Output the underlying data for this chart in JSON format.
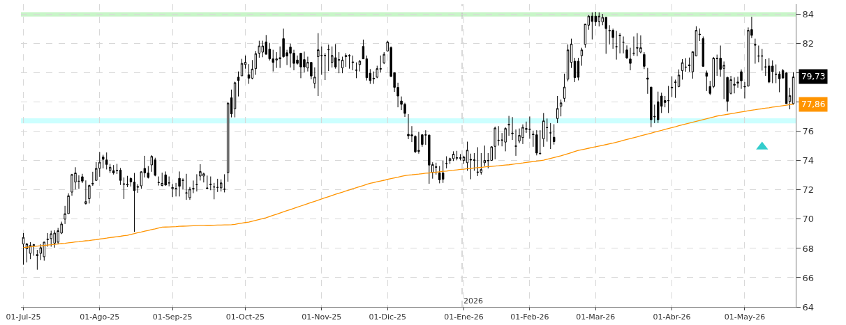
{
  "chart_data": {
    "type": "candlestick",
    "color": "#000000",
    "categories": [
      "01-Jul-25",
      null,
      null,
      null,
      null,
      null,
      null,
      null,
      null,
      null,
      null,
      null,
      null,
      null,
      null,
      null,
      null,
      null,
      null,
      null,
      null,
      null,
      "01-Ago-25",
      null,
      null,
      null,
      null,
      null,
      null,
      null,
      null,
      null,
      null,
      null,
      null,
      null,
      null,
      null,
      null,
      null,
      null,
      null,
      null,
      "01-Sep-25",
      null,
      null,
      null,
      null,
      null,
      null,
      null,
      null,
      null,
      null,
      null,
      null,
      null,
      null,
      null,
      null,
      null,
      null,
      null,
      null,
      "01-Oct-25",
      null,
      null,
      null,
      null,
      null,
      null,
      null,
      null,
      null,
      null,
      null,
      null,
      null,
      null,
      null,
      null,
      null,
      null,
      null,
      null,
      null,
      "01-Nov-25",
      null,
      null,
      null,
      null,
      null,
      null,
      null,
      null,
      null,
      null,
      null,
      null,
      null,
      null,
      null,
      null,
      null,
      null,
      "01-Dic-25",
      null,
      null,
      null,
      null,
      null,
      null,
      null,
      null,
      null,
      null,
      null,
      null,
      null,
      null,
      null,
      null,
      null,
      null,
      null,
      null,
      null,
      "01-Ene-26",
      null,
      null,
      null,
      null,
      null,
      null,
      null,
      null,
      null,
      null,
      null,
      null,
      null,
      null,
      null,
      null,
      null,
      null,
      "01-Feb-26",
      null,
      null,
      null,
      null,
      null,
      null,
      null,
      null,
      null,
      null,
      null,
      null,
      null,
      null,
      null,
      null,
      null,
      null,
      "01-Mar-26",
      null,
      null,
      null,
      null,
      null,
      null,
      null,
      null,
      null,
      null,
      null,
      null,
      null,
      null,
      null,
      null,
      null,
      null,
      null,
      null,
      null,
      "01-Abr-26",
      null,
      null,
      null,
      null,
      null,
      null,
      null,
      null,
      null,
      null,
      null,
      null,
      null,
      null,
      null,
      null,
      null,
      null,
      null,
      null,
      "01-May-26",
      null,
      null,
      null,
      null,
      null,
      null,
      null,
      null,
      null,
      null,
      null,
      null,
      null,
      null
    ],
    "ohlc": [
      [
        68.3,
        69.05,
        66.88,
        68.75
      ],
      [
        67.97,
        68.36,
        67.04,
        68.31
      ],
      [
        67.66,
        68.43,
        67.27,
        68.2
      ],
      [
        68.2,
        68.3,
        67.5,
        68.25
      ],
      [
        67.5,
        67.9,
        66.54,
        67.58
      ],
      [
        67.66,
        68.28,
        67.2,
        68.05
      ],
      [
        67.43,
        68.46,
        67.16,
        68.43
      ],
      [
        68.6,
        69.05,
        68.12,
        68.64
      ],
      [
        68.67,
        69.21,
        68.12,
        69.0
      ],
      [
        68.36,
        69.24,
        68.05,
        69.05
      ],
      [
        68.43,
        69.4,
        68.3,
        69.21
      ],
      [
        69.05,
        69.83,
        68.98,
        69.67
      ],
      [
        70.0,
        70.91,
        69.67,
        70.37
      ],
      [
        70.38,
        71.77,
        70.37,
        71.6
      ],
      [
        71.85,
        73.1,
        71.6,
        73.05
      ],
      [
        72.54,
        73.55,
        72.03,
        73.16
      ],
      [
        72.6,
        73.0,
        72.07,
        72.59
      ],
      [
        72.9,
        73.1,
        72.47,
        72.6
      ],
      [
        71.07,
        72.65,
        70.99,
        71.2
      ],
      [
        71.4,
        72.36,
        71.07,
        72.3
      ],
      [
        72.4,
        73.24,
        72.28,
        72.45
      ],
      [
        72.65,
        73.9,
        72.65,
        73.47
      ],
      [
        73.47,
        74.6,
        72.9,
        73.89
      ],
      [
        74.25,
        74.4,
        73.47,
        74.09
      ],
      [
        74.05,
        74.56,
        73.4,
        73.74
      ],
      [
        73.32,
        73.78,
        73.16,
        73.55
      ],
      [
        73.32,
        73.7,
        73.05,
        73.16
      ],
      [
        73.32,
        73.78,
        73.09,
        73.32
      ],
      [
        73.35,
        73.5,
        72.34,
        72.65
      ],
      [
        72.42,
        72.85,
        71.38,
        72.39
      ],
      [
        72.34,
        72.96,
        72.19,
        72.39
      ],
      [
        72.78,
        72.85,
        72.23,
        72.55
      ],
      [
        72.54,
        73.16,
        69.13,
        71.95
      ],
      [
        72.23,
        72.39,
        71.8,
        72.19
      ],
      [
        72.28,
        73.27,
        72.08,
        73.24
      ],
      [
        73.47,
        74.33,
        72.85,
        73.16
      ],
      [
        73.16,
        73.63,
        72.78,
        72.85
      ],
      [
        73.71,
        74.37,
        73.24,
        74.29
      ],
      [
        74.05,
        74.2,
        72.93,
        73.0
      ],
      [
        72.51,
        72.92,
        72.3,
        72.5
      ],
      [
        72.3,
        73.18,
        72.25,
        72.45
      ],
      [
        73.03,
        73.26,
        72.3,
        72.33
      ],
      [
        72.48,
        72.92,
        72.25,
        72.48
      ],
      [
        72.09,
        72.4,
        71.52,
        72.17
      ],
      [
        72.09,
        72.48,
        71.55,
        72.1
      ],
      [
        72.79,
        73.26,
        71.55,
        72.25
      ],
      [
        72.67,
        72.79,
        72.02,
        72.65
      ],
      [
        71.78,
        73.1,
        71.32,
        71.8
      ],
      [
        71.47,
        72.2,
        71.32,
        72.05
      ],
      [
        72.05,
        72.64,
        71.78,
        72.1
      ],
      [
        72.36,
        73.07,
        71.89,
        72.36
      ],
      [
        72.95,
        73.76,
        72.64,
        73.26
      ],
      [
        72.95,
        73.18,
        72.51,
        73.1
      ],
      [
        72.14,
        72.98,
        72.05,
        72.1
      ],
      [
        72.4,
        72.92,
        71.98,
        72.36
      ],
      [
        72.2,
        72.48,
        71.36,
        72.2
      ],
      [
        72.17,
        72.76,
        71.86,
        72.17
      ],
      [
        72.14,
        72.72,
        71.89,
        72.48
      ],
      [
        72.05,
        73.07,
        71.83,
        72.05
      ],
      [
        73.18,
        78.0,
        72.56,
        77.93
      ],
      [
        78.3,
        78.86,
        76.96,
        77.2
      ],
      [
        77.54,
        79.4,
        76.96,
        79.33
      ],
      [
        79.71,
        80.1,
        78.39,
        79.48
      ],
      [
        79.8,
        80.96,
        79.8,
        80.65
      ],
      [
        80.57,
        81.19,
        80.29,
        80.72
      ],
      [
        79.87,
        80.6,
        79.25,
        79.64
      ],
      [
        79.64,
        80.88,
        79.56,
        80.26
      ],
      [
        80.29,
        81.5,
        79.87,
        81.32
      ],
      [
        81.35,
        82.2,
        81.04,
        81.84
      ],
      [
        81.42,
        82.2,
        81.07,
        81.84
      ],
      [
        82.12,
        82.59,
        81.27,
        81.27
      ],
      [
        81.63,
        82.05,
        80.85,
        80.96
      ],
      [
        80.96,
        81.58,
        80.1,
        80.72
      ],
      [
        80.88,
        81.42,
        80.34,
        80.96
      ],
      [
        80.96,
        81.81,
        80.34,
        81.04
      ],
      [
        82.34,
        83.03,
        81.04,
        81.11
      ],
      [
        81.38,
        81.58,
        80.54,
        81.16
      ],
      [
        81.77,
        82.0,
        80.37,
        81.35
      ],
      [
        81.35,
        81.58,
        80.18,
        80.65
      ],
      [
        80.88,
        81.19,
        80.57,
        80.65
      ],
      [
        81.35,
        81.35,
        79.64,
        80.41
      ],
      [
        80.91,
        81.46,
        80.02,
        80.41
      ],
      [
        80.34,
        81.11,
        80.1,
        80.72
      ],
      [
        80.72,
        80.72,
        79.56,
        79.79
      ],
      [
        79.29,
        80.38,
        78.94,
        79.71
      ],
      [
        81.11,
        82.72,
        78.42,
        81.58
      ],
      [
        81.19,
        81.81,
        79.87,
        81.19
      ],
      [
        81.2,
        81.35,
        79.51,
        81.19
      ],
      [
        81.6,
        81.94,
        80.13,
        81.58
      ],
      [
        80.72,
        81.81,
        80.37,
        81.19
      ],
      [
        81.04,
        81.97,
        80.29,
        80.41
      ],
      [
        80.88,
        81.42,
        79.98,
        80.9
      ],
      [
        80.34,
        81.11,
        79.98,
        80.88
      ],
      [
        81.11,
        81.35,
        80.41,
        81.19
      ],
      [
        81.19,
        81.27,
        80.29,
        81.16
      ],
      [
        80.75,
        81.19,
        80.18,
        80.72
      ],
      [
        80.2,
        80.72,
        79.64,
        80.18
      ],
      [
        80.57,
        80.88,
        80.1,
        80.8
      ],
      [
        81.81,
        82.28,
        80.96,
        80.96
      ],
      [
        80.96,
        81.19,
        79.48,
        79.67
      ],
      [
        79.98,
        80.26,
        79.25,
        79.48
      ],
      [
        79.64,
        80.1,
        79.25,
        79.6
      ],
      [
        79.71,
        80.49,
        79.64,
        80.29
      ],
      [
        80.26,
        81.19,
        80.02,
        80.29
      ],
      [
        80.69,
        81.42,
        80.6,
        81.27
      ],
      [
        81.5,
        82.2,
        81.47,
        82.12
      ],
      [
        81.74,
        81.81,
        79.71,
        79.76
      ],
      [
        80.02,
        80.02,
        78.7,
        79.01
      ],
      [
        79.01,
        79.33,
        77.65,
        78.42
      ],
      [
        78.08,
        78.39,
        77.46,
        77.85
      ],
      [
        77.85,
        77.96,
        76.99,
        77.23
      ],
      [
        75.8,
        77.18,
        75.47,
        75.7
      ],
      [
        75.77,
        76.36,
        75.27,
        75.7
      ],
      [
        75.66,
        75.73,
        74.52,
        74.61
      ],
      [
        74.7,
        75.97,
        74.48,
        74.64
      ],
      [
        75.77,
        75.81,
        74.95,
        75.11
      ],
      [
        75.77,
        76.08,
        75.08,
        75.75
      ],
      [
        75.75,
        75.77,
        72.42,
        73.7
      ],
      [
        73.2,
        73.89,
        72.77,
        73.73
      ],
      [
        73.58,
        73.86,
        73.05,
        73.55
      ],
      [
        73.16,
        73.63,
        72.45,
        72.69
      ],
      [
        73.16,
        74.02,
        72.48,
        72.73
      ],
      [
        73.78,
        74.3,
        73.47,
        73.8
      ],
      [
        74.02,
        74.2,
        73.78,
        74.14
      ],
      [
        74.14,
        74.64,
        73.98,
        74.45
      ],
      [
        74.17,
        74.67,
        74.02,
        74.2
      ],
      [
        74.2,
        74.45,
        74.02,
        74.17
      ],
      [
        74.02,
        74.33,
        73.78,
        74.25
      ],
      [
        73.86,
        75.3,
        73.31,
        74.72
      ],
      [
        74.09,
        74.48,
        72.73,
        74.05
      ],
      [
        74.02,
        74.52,
        73.31,
        74.05
      ],
      [
        73.2,
        74.92,
        72.95,
        73.22
      ],
      [
        73.2,
        74.52,
        73.05,
        73.39
      ],
      [
        73.86,
        75.03,
        73.63,
        74.02
      ],
      [
        74.02,
        74.52,
        73.47,
        74.0
      ],
      [
        74.02,
        74.98,
        74.02,
        74.95
      ],
      [
        74.98,
        76.33,
        74.09,
        76.23
      ],
      [
        75.38,
        76.36,
        75.03,
        75.4
      ],
      [
        75.42,
        75.89,
        74.98,
        75.4
      ],
      [
        75.27,
        76.28,
        74.64,
        76.2
      ],
      [
        76.44,
        77.06,
        75.7,
        76.48
      ],
      [
        75.89,
        76.98,
        75.42,
        75.85
      ],
      [
        74.98,
        76.13,
        74.33,
        75.0
      ],
      [
        75.34,
        76.2,
        75.19,
        75.73
      ],
      [
        75.58,
        76.48,
        75.14,
        76.28
      ],
      [
        76.13,
        76.67,
        75.89,
        76.2
      ],
      [
        76.13,
        77.02,
        75.5,
        76.16
      ],
      [
        75.81,
        76.05,
        74.95,
        75.78
      ],
      [
        75.77,
        76.08,
        74.36,
        74.52
      ],
      [
        74.48,
        76.08,
        74.41,
        74.5
      ],
      [
        75.5,
        77.26,
        74.95,
        76.72
      ],
      [
        76.26,
        76.88,
        75.3,
        76.26
      ],
      [
        75.9,
        76.57,
        74.8,
        75.9
      ],
      [
        75.6,
        76.49,
        75.1,
        75.3
      ],
      [
        76.88,
        78.42,
        76.57,
        77.57
      ],
      [
        77.72,
        78.18,
        77.03,
        77.95
      ],
      [
        78.26,
        79.95,
        78.03,
        79.03
      ],
      [
        79.57,
        81.95,
        79.42,
        81.57
      ],
      [
        80.72,
        82.34,
        80.34,
        81.98
      ],
      [
        80.8,
        81.03,
        79.37,
        79.68
      ],
      [
        80.8,
        81.03,
        79.49,
        79.7
      ],
      [
        81.18,
        81.72,
        80.49,
        81.57
      ],
      [
        81.95,
        83.37,
        81.72,
        83.34
      ],
      [
        83.26,
        83.95,
        82.95,
        83.88
      ],
      [
        83.88,
        84.14,
        82.29,
        83.52
      ],
      [
        83.88,
        84.18,
        83.22,
        83.49
      ],
      [
        83.52,
        84.14,
        83.18,
        83.88
      ],
      [
        83.49,
        84.03,
        83.26,
        83.8
      ],
      [
        83.8,
        83.83,
        81.31,
        83.03
      ],
      [
        82.91,
        83.26,
        81.95,
        82.88
      ],
      [
        82.91,
        83.03,
        81.65,
        82.42
      ],
      [
        81.8,
        82.88,
        80.91,
        81.78
      ],
      [
        82.57,
        82.72,
        81.34,
        82.55
      ],
      [
        82.11,
        82.49,
        81.34,
        82.1
      ],
      [
        81.57,
        81.88,
        80.95,
        81.03
      ],
      [
        80.95,
        81.72,
        80.18,
        80.65
      ],
      [
        81.34,
        82.49,
        81.18,
        81.35
      ],
      [
        81.72,
        82.72,
        81.15,
        81.7
      ],
      [
        81.42,
        82.57,
        81.34,
        81.72
      ],
      [
        81.26,
        81.42,
        80.26,
        80.45
      ],
      [
        79.65,
        80.34,
        78.57,
        79.57
      ],
      [
        79.03,
        79.03,
        76.29,
        76.8
      ],
      [
        77.03,
        77.83,
        76.57,
        77.0
      ],
      [
        78.03,
        78.72,
        76.57,
        76.8
      ],
      [
        78.42,
        78.65,
        77.26,
        77.72
      ],
      [
        78.11,
        78.42,
        77.65,
        77.98
      ],
      [
        78.11,
        79.11,
        77.26,
        78.1
      ],
      [
        79.02,
        79.77,
        78.37,
        78.99
      ],
      [
        79.38,
        79.54,
        78.29,
        79.35
      ],
      [
        79.07,
        80.24,
        79.02,
        79.85
      ],
      [
        80.16,
        80.94,
        79.54,
        80.7
      ],
      [
        80.39,
        81.01,
        80.08,
        80.4
      ],
      [
        80.55,
        81.05,
        80.08,
        80.5
      ],
      [
        80.08,
        81.48,
        79.61,
        81.45
      ],
      [
        81.17,
        83.19,
        81.14,
        82.91
      ],
      [
        82.65,
        83.04,
        82.18,
        82.62
      ],
      [
        82.34,
        82.49,
        80.42,
        80.45
      ],
      [
        80.0,
        80.16,
        78.76,
        79.77
      ],
      [
        79.07,
        79.46,
        78.49,
        78.6
      ],
      [
        79.07,
        81.09,
        78.96,
        81.01
      ],
      [
        81.01,
        81.25,
        79.8,
        80.98
      ],
      [
        81.01,
        81.87,
        79.74,
        80.24
      ],
      [
        80.31,
        80.78,
        78.21,
        80.52
      ],
      [
        79.69,
        79.74,
        77.36,
        78.06
      ],
      [
        78.6,
        79.8,
        78.53,
        79.54
      ],
      [
        79.15,
        79.69,
        78.6,
        79.23
      ],
      [
        79.3,
        79.74,
        78.99,
        79.38
      ],
      [
        80.08,
        80.24,
        78.91,
        79.46
      ],
      [
        79.07,
        79.38,
        78.25,
        79.05
      ],
      [
        79.1,
        83.11,
        79.07,
        82.91
      ],
      [
        82.96,
        83.84,
        82.38,
        82.57
      ],
      [
        81.95,
        82.34,
        80.63,
        81.9
      ],
      [
        81.17,
        81.87,
        80.73,
        81.15
      ],
      [
        81.17,
        81.64,
        80.16,
        81.15
      ],
      [
        80.42,
        80.94,
        79.8,
        80.4
      ],
      [
        80.47,
        81.01,
        79.3,
        79.38
      ],
      [
        80.47,
        80.86,
        79.3,
        80.08
      ],
      [
        79.93,
        80.58,
        79.3,
        79.9
      ],
      [
        79.93,
        80.11,
        78.68,
        79.6
      ],
      [
        80.16,
        80.27,
        79.61,
        79.65
      ],
      [
        80.0,
        80.05,
        77.9,
        77.9
      ],
      [
        78.06,
        78.99,
        77.51,
        78.45
      ],
      [
        77.9,
        80.05,
        77.83,
        79.73
      ]
    ],
    "series": [
      {
        "type": "line",
        "color": "#ff9400",
        "values": [
          68.06,
          68.08,
          68.11,
          68.13,
          68.16,
          68.18,
          68.2,
          68.23,
          68.25,
          68.28,
          68.3,
          68.33,
          68.35,
          68.38,
          68.41,
          68.44,
          68.46,
          68.49,
          68.52,
          68.54,
          68.57,
          68.6,
          68.64,
          68.67,
          68.7,
          68.74,
          68.77,
          68.8,
          68.83,
          68.87,
          68.9,
          68.96,
          69.01,
          69.07,
          69.12,
          69.18,
          69.23,
          69.29,
          69.34,
          69.4,
          69.45,
          69.46,
          69.47,
          69.48,
          69.49,
          69.51,
          69.52,
          69.53,
          69.54,
          69.55,
          69.56,
          69.57,
          69.57,
          69.58,
          69.58,
          69.59,
          69.6,
          69.6,
          69.61,
          69.61,
          69.62,
          69.65,
          69.69,
          69.73,
          69.77,
          69.8,
          69.86,
          69.92,
          69.98,
          70.04,
          70.1,
          70.18,
          70.26,
          70.34,
          70.42,
          70.5,
          70.58,
          70.66,
          70.74,
          70.82,
          70.9,
          70.98,
          71.06,
          71.14,
          71.22,
          71.3,
          71.38,
          71.46,
          71.54,
          71.62,
          71.7,
          71.78,
          71.85,
          71.93,
          72.0,
          72.08,
          72.15,
          72.23,
          72.3,
          72.38,
          72.45,
          72.5,
          72.56,
          72.61,
          72.66,
          72.72,
          72.77,
          72.82,
          72.87,
          72.93,
          72.98,
          73.01,
          73.03,
          73.06,
          73.08,
          73.11,
          73.14,
          73.16,
          73.19,
          73.21,
          73.24,
          73.27,
          73.29,
          73.32,
          73.34,
          73.37,
          73.4,
          73.42,
          73.45,
          73.47,
          73.5,
          73.52,
          73.54,
          73.57,
          73.59,
          73.61,
          73.63,
          73.65,
          73.68,
          73.7,
          73.72,
          73.75,
          73.78,
          73.81,
          73.84,
          73.88,
          73.91,
          73.94,
          73.97,
          74.0,
          74.03,
          74.09,
          74.15,
          74.21,
          74.27,
          74.33,
          74.4,
          74.48,
          74.55,
          74.63,
          74.7,
          74.75,
          74.8,
          74.85,
          74.9,
          74.95,
          75.0,
          75.05,
          75.1,
          75.15,
          75.2,
          75.26,
          75.32,
          75.39,
          75.45,
          75.51,
          75.57,
          75.63,
          75.7,
          75.76,
          75.82,
          75.88,
          75.95,
          76.01,
          76.07,
          76.14,
          76.2,
          76.26,
          76.32,
          76.39,
          76.45,
          76.51,
          76.57,
          76.63,
          76.69,
          76.75,
          76.81,
          76.87,
          76.93,
          76.99,
          77.05,
          77.09,
          77.13,
          77.17,
          77.21,
          77.25,
          77.29,
          77.33,
          77.37,
          77.41,
          77.45,
          77.48,
          77.52,
          77.55,
          77.59,
          77.62,
          77.66,
          77.69,
          77.72,
          77.76,
          77.79,
          77.83,
          77.86
        ]
      },
      {
        "type": "scatter",
        "color": "#33cccc",
        "marker": "triangle",
        "values": [
          null,
          null,
          null,
          null,
          null,
          null,
          null,
          null,
          null,
          null,
          null,
          null,
          null,
          null,
          null,
          null,
          null,
          null,
          null,
          null,
          null,
          null,
          null,
          null,
          null,
          null,
          null,
          null,
          null,
          null,
          null,
          null,
          null,
          null,
          null,
          null,
          null,
          null,
          null,
          null,
          null,
          null,
          null,
          null,
          null,
          null,
          null,
          null,
          null,
          null,
          null,
          null,
          null,
          null,
          null,
          null,
          null,
          null,
          null,
          null,
          null,
          null,
          null,
          null,
          null,
          null,
          null,
          null,
          null,
          null,
          null,
          null,
          null,
          null,
          null,
          null,
          null,
          null,
          null,
          null,
          null,
          null,
          null,
          null,
          null,
          null,
          null,
          null,
          null,
          null,
          null,
          null,
          null,
          null,
          null,
          null,
          null,
          null,
          null,
          null,
          null,
          null,
          null,
          null,
          null,
          null,
          null,
          null,
          null,
          null,
          null,
          null,
          null,
          null,
          null,
          null,
          null,
          null,
          null,
          null,
          null,
          null,
          null,
          null,
          null,
          null,
          null,
          null,
          null,
          null,
          null,
          null,
          null,
          null,
          null,
          null,
          null,
          null,
          null,
          null,
          null,
          null,
          null,
          null,
          null,
          null,
          null,
          null,
          null,
          null,
          null,
          null,
          null,
          null,
          null,
          null,
          null,
          null,
          null,
          null,
          null,
          null,
          null,
          null,
          null,
          null,
          null,
          null,
          null,
          null,
          null,
          null,
          null,
          null,
          null,
          null,
          null,
          null,
          null,
          null,
          null,
          null,
          null,
          null,
          null,
          null,
          null,
          null,
          null,
          null,
          null,
          null,
          null,
          null,
          null,
          null,
          null,
          null,
          null,
          null,
          null,
          null,
          null,
          null,
          null,
          null,
          null,
          null,
          null,
          null,
          null,
          null,
          null,
          74.95,
          null,
          null,
          null,
          null,
          null,
          null,
          null,
          null,
          null
        ]
      }
    ],
    "ylim": [
      64,
      84.7
    ],
    "yticks": [
      64,
      66,
      68,
      70,
      72,
      74,
      76,
      {
        "value": 78,
        "label": null
      },
      {
        "value": 80,
        "label": null
      },
      82,
      84
    ],
    "grid": true,
    "bands": [
      {
        "axis": "y",
        "from": 83.85,
        "to": 84.15,
        "color": "#c8f5c8"
      },
      {
        "axis": "y",
        "from": 76.55,
        "to": 76.9,
        "color": "#ccffff"
      }
    ],
    "ref_lines": [
      {
        "axis": "x",
        "value": "01-Ene-26",
        "label": "2026",
        "color": "#c0c0c0",
        "line_style": "dashed"
      }
    ],
    "annotations": [
      "79,73",
      "77,86"
    ]
  }
}
